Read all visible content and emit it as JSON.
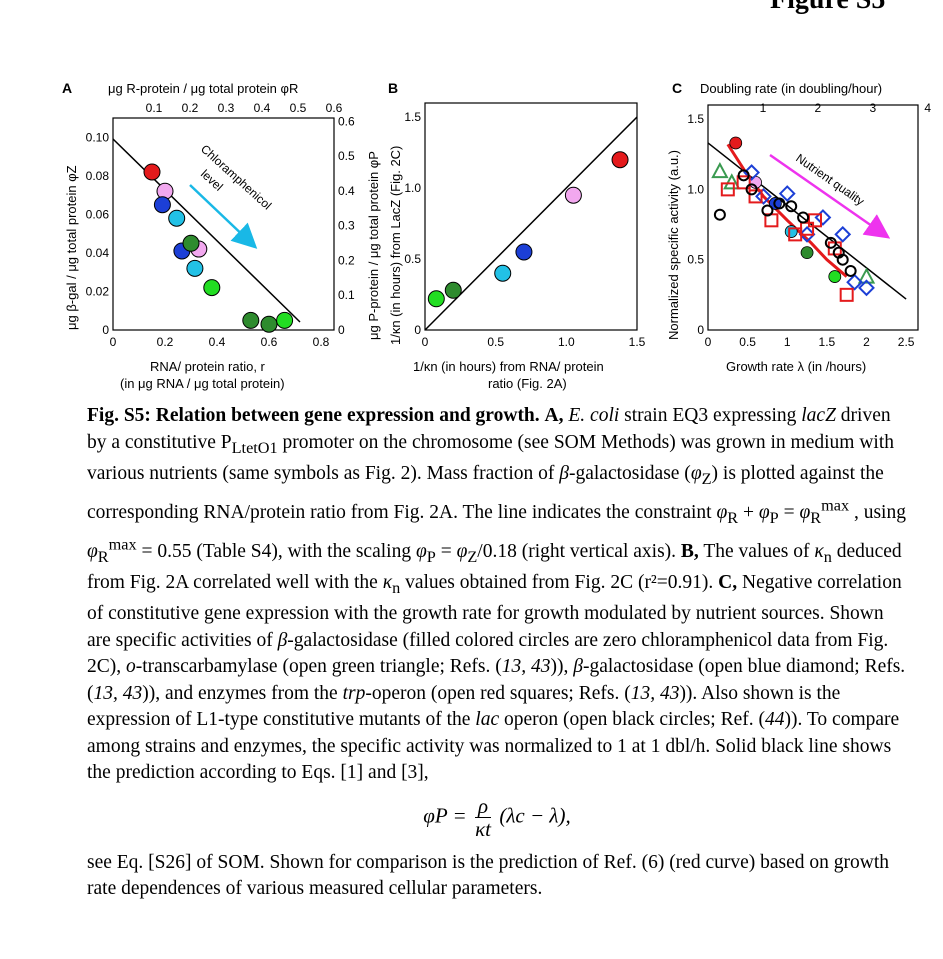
{
  "figure_header": "Figure S5",
  "panel_a": {
    "letter": "A",
    "top_axis_label": "μg R-protein / μg total protein φR",
    "top_ticks": [
      "0.1",
      "0.2",
      "0.3",
      "0.4",
      "0.5",
      "0.6"
    ],
    "left_axis_label": "μg β-gal / μg total protein φZ",
    "left_ticks": [
      "0.10",
      "0.08",
      "0.06",
      "0.04",
      "0.02",
      "0"
    ],
    "right_axis_label": "μg P-protein / μg total protein φP",
    "right_ticks": [
      "0.6",
      "0.5",
      "0.4",
      "0.3",
      "0.2",
      "0.1",
      "0"
    ],
    "bottom_ticks": [
      "0",
      "0.2",
      "0.4",
      "0.6",
      "0.8"
    ],
    "xlabel_line1": "RNA/ protein ratio, r",
    "xlabel_line2": "(in μg RNA / μg total protein)",
    "arrow_label_1": "Chloramphenicol",
    "arrow_label_2": "level"
  },
  "panel_b": {
    "letter": "B",
    "ylabel": "1/κn (in hours) from LacZ (Fig. 2C)",
    "y_ticks": [
      "1.5",
      "1.0",
      "0.5",
      "0"
    ],
    "x_ticks": [
      "0",
      "0.5",
      "1.0",
      "1.5"
    ],
    "xlabel_line1": "1/κn (in hours) from RNA/ protein",
    "xlabel_line2": "ratio (Fig. 2A)"
  },
  "panel_c": {
    "letter": "C",
    "top_axis_label": "Doubling rate (in doubling/hour)",
    "top_ticks": [
      "1",
      "2",
      "3",
      "4"
    ],
    "ylabel": "Normalized specific activity (a.u.)",
    "y_ticks": [
      "1.5",
      "1.0",
      "0.5",
      "0"
    ],
    "x_ticks": [
      "0",
      "0.5",
      "1",
      "1.5",
      "2",
      "2.5"
    ],
    "xlabel": "Growth rate λ (in /hours)",
    "arrow_label": "Nutrient quality"
  },
  "colors": {
    "arrow_cyan": "#19b8e6",
    "arrow_magenta": "#ee33ee",
    "fit_red": "#e41a1c"
  },
  "chart_data": [
    {
      "type": "scatter",
      "panel": "A",
      "xlabel": "RNA/ protein ratio, r",
      "ylabel": "μg β-gal / μg total protein φZ",
      "xlim": [
        0,
        0.85
      ],
      "ylim": [
        0,
        0.11
      ],
      "line": {
        "x": [
          0,
          0.75
        ],
        "y": [
          0.1,
          0
        ]
      },
      "series": [
        {
          "color": "#e41a1c",
          "x": [
            0.15
          ],
          "y": [
            0.082
          ]
        },
        {
          "color": "#f2a8ef",
          "x": [
            0.2,
            0.33
          ],
          "y": [
            0.072,
            0.042
          ]
        },
        {
          "color": "#1c3fd6",
          "x": [
            0.19,
            0.265
          ],
          "y": [
            0.065,
            0.041
          ]
        },
        {
          "color": "#22c1e6",
          "x": [
            0.245,
            0.315
          ],
          "y": [
            0.058,
            0.032
          ]
        },
        {
          "color": "#2e8b2e",
          "x": [
            0.3,
            0.53,
            0.6
          ],
          "y": [
            0.045,
            0.005,
            0.003
          ]
        },
        {
          "color": "#22dd22",
          "x": [
            0.38,
            0.66
          ],
          "y": [
            0.022,
            0.005
          ]
        }
      ]
    },
    {
      "type": "scatter",
      "panel": "B",
      "xlabel": "1/κn (in hours) from RNA/ protein ratio (Fig. 2A)",
      "ylabel": "1/κn (in hours) from LacZ (Fig. 2C)",
      "xlim": [
        0,
        1.5
      ],
      "ylim": [
        0,
        1.5
      ],
      "line": {
        "x": [
          0,
          1.5
        ],
        "y": [
          0,
          1.5
        ]
      },
      "points": [
        {
          "x": 0.08,
          "y": 0.22,
          "color": "#22dd22"
        },
        {
          "x": 0.2,
          "y": 0.28,
          "color": "#2e8b2e"
        },
        {
          "x": 0.55,
          "y": 0.4,
          "color": "#22c1e6"
        },
        {
          "x": 0.7,
          "y": 0.55,
          "color": "#1c3fd6"
        },
        {
          "x": 1.05,
          "y": 0.95,
          "color": "#f2a8ef"
        },
        {
          "x": 1.38,
          "y": 1.2,
          "color": "#e41a1c"
        }
      ]
    },
    {
      "type": "scatter",
      "panel": "C",
      "xlabel": "Growth rate λ (in /hours)",
      "ylabel": "Normalized specific activity (a.u.)",
      "xlim": [
        0,
        2.5
      ],
      "ylim": [
        0,
        1.5
      ],
      "line": {
        "x": [
          0,
          2.5
        ],
        "y": [
          1.33,
          0.22
        ]
      },
      "fit_curve": {
        "x": [
          0.25,
          0.5,
          0.7,
          1.0,
          1.3,
          1.5,
          1.75
        ],
        "y": [
          1.32,
          1.1,
          0.95,
          0.78,
          0.62,
          0.5,
          0.38
        ]
      },
      "series": [
        {
          "name": "",
          "marker": "filled-circle",
          "x": [
            0.35,
            0.6,
            0.85,
            1.05,
            1.25,
            1.6
          ],
          "y": [
            1.33,
            1.05,
            0.9,
            0.7,
            0.55,
            0.38
          ]
        },
        {
          "marker": "open-triangle",
          "x": [
            0.15,
            0.3,
            2.0
          ],
          "y": [
            1.13,
            1.05,
            0.38
          ]
        },
        {
          "marker": "open-diamond",
          "x": [
            0.55,
            0.7,
            1.0,
            1.25,
            1.45,
            1.7,
            1.85,
            2.0
          ],
          "y": [
            1.12,
            0.95,
            0.97,
            0.68,
            0.8,
            0.68,
            0.34,
            0.3
          ]
        },
        {
          "marker": "open-square",
          "x": [
            0.25,
            0.45,
            0.6,
            0.8,
            1.1,
            1.25,
            1.35,
            1.6,
            1.75
          ],
          "y": [
            1.0,
            1.05,
            0.95,
            0.78,
            0.68,
            0.72,
            0.78,
            0.58,
            0.25
          ]
        },
        {
          "marker": "open-circle",
          "x": [
            0.15,
            0.45,
            0.55,
            0.75,
            0.9,
            1.05,
            1.2,
            1.55,
            1.65,
            1.7,
            1.8
          ],
          "y": [
            0.82,
            1.1,
            1.0,
            0.85,
            0.9,
            0.88,
            0.8,
            0.62,
            0.55,
            0.5,
            0.42
          ]
        }
      ]
    }
  ],
  "caption": {
    "title": "Fig. S5: Relation between gene expression and growth.",
    "text_html": " <b>A,</b> <i>E. coli</i> strain EQ3 expressing <i>lacZ</i> driven by a constitutive P<sub>LtetO1</sub> promoter on the chromosome (see SOM Methods) was grown in medium with various nutrients (same symbols as Fig. 2). Mass fraction of <i>β</i>-galactosidase (<i>φ</i><sub>Z</sub>) is plotted against the corresponding RNA/protein ratio from Fig. 2A. The line indicates the constraint <i>φ</i><sub>R</sub> + <i>φ</i><sub>P</sub> = <i>φ</i><sub>R</sub><sup>max</sup> , using <i>φ</i><sub>R</sub><sup>max</sup> = 0.55 (Table S4), with the scaling <i>φ</i><sub>P</sub> = <i>φ</i><sub>Z</sub>/0.18 (right vertical axis). <b>B,</b> The values of <i>κ</i><sub>n</sub> deduced from Fig. 2A correlated well with the <i>κ</i><sub>n</sub> values obtained from Fig. 2C (r²=0.91). <b>C,</b> Negative correlation of constitutive gene expression with the growth rate for growth modulated by nutrient sources. Shown are specific activities of <i>β</i>-galactosidase (filled colored circles are zero chloramphenicol data from Fig. 2C), <i>o</i>-transcarbamylase (open green triangle; Refs. (<i>13, 43</i>)), <i>β</i>-galactosidase (open blue diamond; Refs. (<i>13, 43</i>)), and enzymes from the <i>trp</i>-operon (open red squares; Refs. (<i>13, 43</i>)). Also shown is the expression of L1-type constitutive mutants of the <i>lac</i> operon (open black circles; Ref. (<i>44</i>)). To compare among strains and enzymes, the specific activity was normalized to 1 at 1 dbl/h. Solid black line shows the prediction according to Eqs. [1] and [3],",
    "eq_lhs": "φP =",
    "eq_num": "ρ",
    "eq_den": "κt",
    "eq_rhs": "(λc − λ),",
    "after": "see Eq. [S26] of SOM. Shown for comparison is the prediction of Ref. (6) (red curve) based on growth rate dependences of various measured cellular parameters."
  }
}
